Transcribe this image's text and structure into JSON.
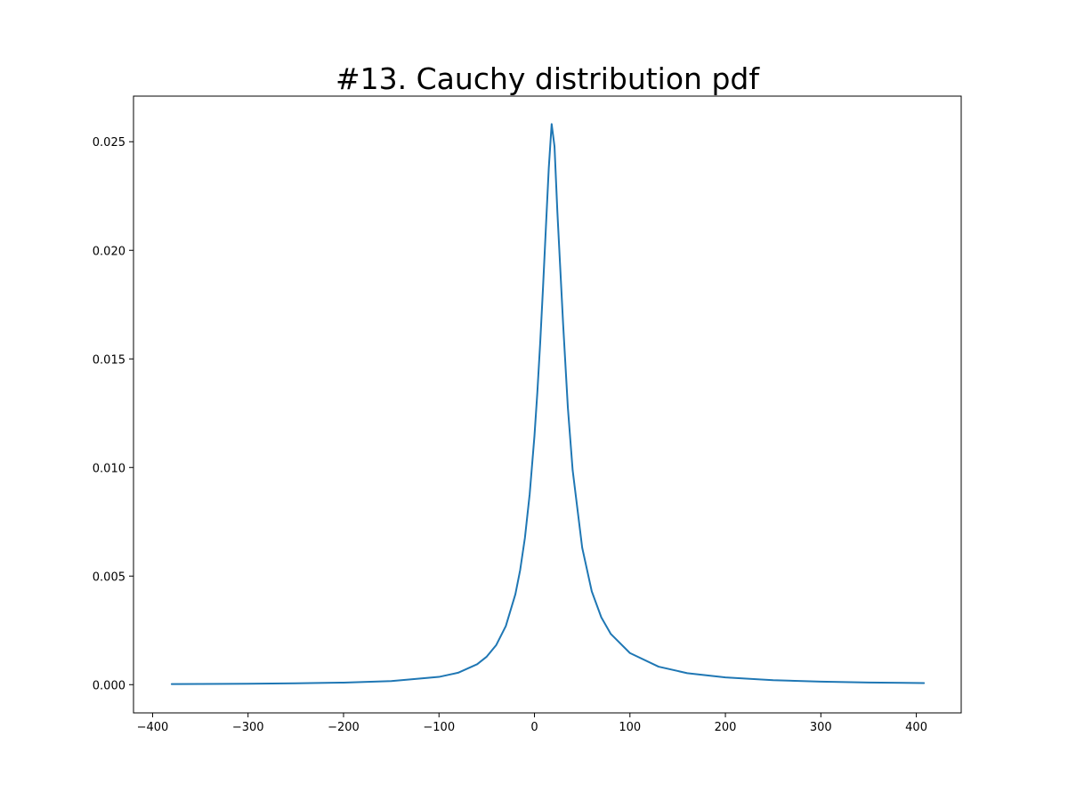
{
  "chart_data": {
    "type": "line",
    "title": "#13. Cauchy distribution pdf",
    "xlabel": "",
    "ylabel": "",
    "xlim": [
      -420,
      447
    ],
    "ylim": [
      -0.0013,
      0.0271
    ],
    "x_ticks": [
      -400,
      -300,
      -200,
      -100,
      0,
      100,
      200,
      300,
      400
    ],
    "x_tick_labels": [
      "−400",
      "−300",
      "−200",
      "−100",
      "0",
      "100",
      "200",
      "300",
      "400"
    ],
    "y_ticks": [
      0.0,
      0.005,
      0.01,
      0.015,
      0.02,
      0.025
    ],
    "y_tick_labels": [
      "0.000",
      "0.005",
      "0.010",
      "0.015",
      "0.020",
      "0.025"
    ],
    "grid": false,
    "legend": "none",
    "line_color": "#1f77b4",
    "series": [
      {
        "x": [
          -380,
          -350,
          -300,
          -250,
          -200,
          -150,
          -100,
          -80,
          -60,
          -50,
          -40,
          -30,
          -20,
          -15,
          -10,
          -5,
          0,
          3,
          6,
          9,
          12,
          15,
          18,
          21,
          24,
          27,
          30,
          35,
          40,
          50,
          60,
          70,
          80,
          100,
          130,
          160,
          200,
          250,
          300,
          350,
          408
        ],
        "y": [
          2.8e-05,
          3.3e-05,
          4.4e-05,
          6.2e-05,
          9.5e-05,
          0.000165,
          0.000358,
          0.000548,
          0.00094,
          0.00129,
          0.001827,
          0.002698,
          0.004163,
          0.005271,
          0.006759,
          0.008776,
          0.011456,
          0.013444,
          0.015738,
          0.018312,
          0.021071,
          0.023789,
          0.025816,
          0.024787,
          0.021771,
          0.01919,
          0.016623,
          0.012748,
          0.009877,
          0.006308,
          0.004299,
          0.0031,
          0.002333,
          0.001456,
          0.000828,
          0.00053,
          0.000332,
          0.000205,
          0.000139,
          0.0001,
          7.3e-05
        ]
      }
    ]
  }
}
